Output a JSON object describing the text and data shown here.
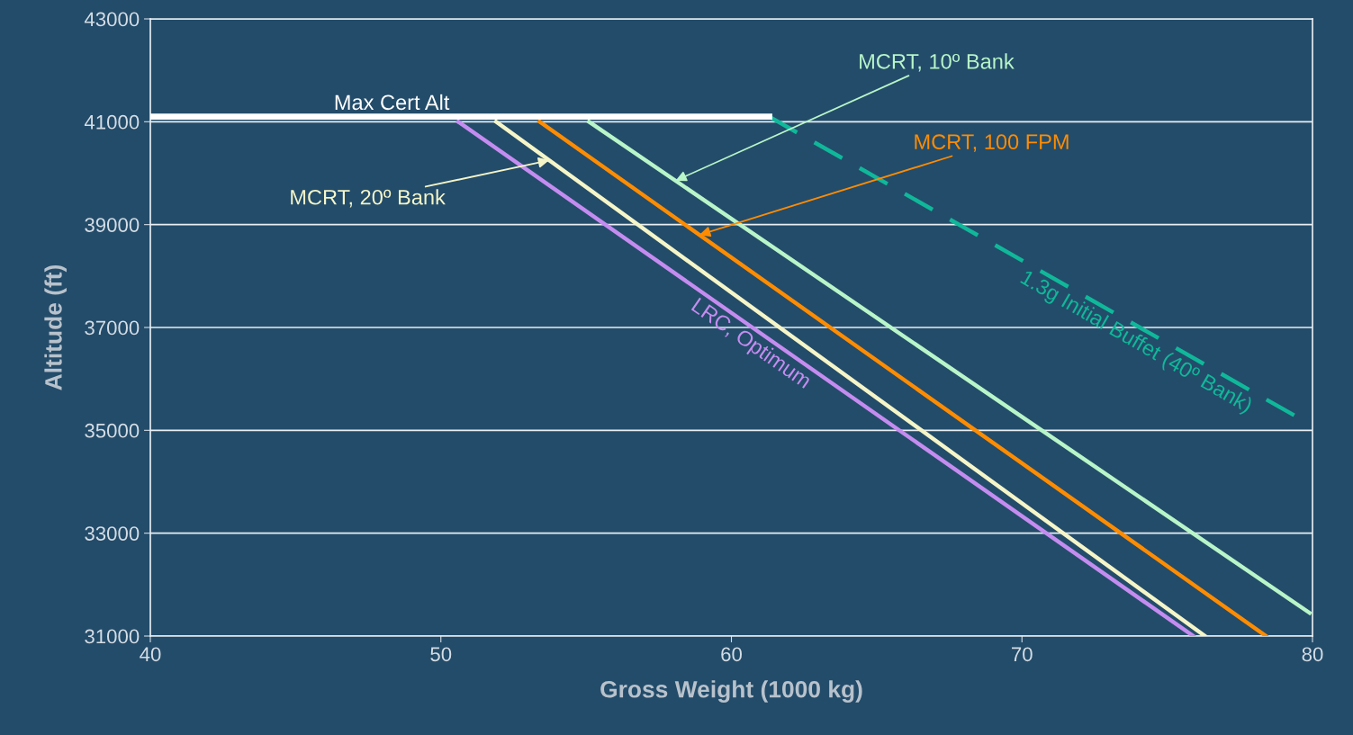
{
  "chart_data": {
    "type": "line",
    "xlabel": "Gross Weight (1000 kg)",
    "ylabel": "Altitude (ft)",
    "xlim": [
      40,
      80
    ],
    "xticks": [
      40,
      50,
      60,
      70,
      80
    ],
    "ylim": [
      31000,
      43000
    ],
    "yticks": [
      31000,
      33000,
      35000,
      37000,
      39000,
      41000,
      43000
    ],
    "grid": "y",
    "legend": false,
    "marker": "none",
    "series": [
      {
        "name": "Max Cert Alt",
        "color": "#ffffff",
        "x": [
          40,
          61.3
        ],
        "values": [
          41100,
          41100
        ]
      },
      {
        "name": "LRC, Optimum",
        "color": "#c58cf0",
        "x": [
          50.6,
          75.9
        ],
        "values": [
          41000,
          31000
        ]
      },
      {
        "name": "MCRT, 20º Bank",
        "color": "#f5f5c8",
        "x": [
          51.9,
          76.3
        ],
        "values": [
          41000,
          31000
        ]
      },
      {
        "name": "MCRT, 100 FPM",
        "color": "#ff8c00",
        "x": [
          53.4,
          78.4
        ],
        "values": [
          41000,
          31000
        ]
      },
      {
        "name": "MCRT, 10º Bank",
        "color": "#b8f5c8",
        "x": [
          55.1,
          79.9
        ],
        "values": [
          41000,
          31450
        ]
      },
      {
        "name": "1.3g Initial Buffet (40º Bank)",
        "color": "#10b89a",
        "x": [
          61.3,
          79.5
        ],
        "values": [
          41100,
          35250
        ],
        "line_style": "dashed"
      }
    ]
  }
}
